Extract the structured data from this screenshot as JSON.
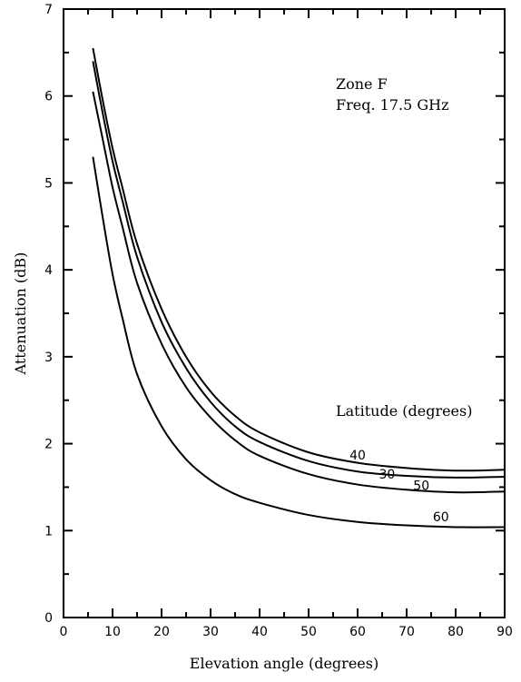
{
  "chart_data": {
    "type": "line",
    "title": "",
    "xlabel": "Elevation angle (degrees)",
    "ylabel": "Attenuation (dB)",
    "xlim": [
      0,
      90
    ],
    "ylim": [
      0,
      7
    ],
    "x_ticks": [
      0,
      10,
      20,
      30,
      40,
      50,
      60,
      70,
      80,
      90
    ],
    "y_ticks": [
      0,
      1,
      2,
      3,
      4,
      5,
      6,
      7
    ],
    "grid": false,
    "annotations": {
      "zone": "Zone F",
      "freq": "Freq. 17.5 GHz",
      "legend_title": "Latitude (degrees)"
    },
    "series": [
      {
        "name": "40",
        "label_pos": [
          60,
          1.82
        ],
        "x": [
          6,
          8,
          10,
          12,
          15,
          20,
          25,
          30,
          35,
          40,
          50,
          60,
          70,
          80,
          90
        ],
        "y": [
          6.55,
          5.95,
          5.4,
          4.95,
          4.3,
          3.55,
          3.0,
          2.6,
          2.32,
          2.13,
          1.9,
          1.78,
          1.72,
          1.69,
          1.7
        ]
      },
      {
        "name": "30",
        "label_pos": [
          66,
          1.6
        ],
        "x": [
          6,
          8,
          10,
          12,
          15,
          20,
          25,
          30,
          35,
          40,
          50,
          60,
          70,
          80,
          90
        ],
        "y": [
          6.4,
          5.8,
          5.25,
          4.8,
          4.15,
          3.4,
          2.87,
          2.48,
          2.2,
          2.02,
          1.8,
          1.68,
          1.63,
          1.61,
          1.62
        ]
      },
      {
        "name": "50",
        "label_pos": [
          73,
          1.47
        ],
        "x": [
          6,
          8,
          10,
          12,
          15,
          20,
          25,
          30,
          35,
          40,
          50,
          60,
          70,
          80,
          90
        ],
        "y": [
          6.05,
          5.5,
          4.95,
          4.5,
          3.85,
          3.15,
          2.65,
          2.3,
          2.04,
          1.86,
          1.65,
          1.53,
          1.47,
          1.44,
          1.45
        ]
      },
      {
        "name": "60",
        "label_pos": [
          77,
          1.11
        ],
        "x": [
          6,
          8,
          10,
          12,
          15,
          20,
          25,
          30,
          35,
          40,
          50,
          60,
          70,
          80,
          90
        ],
        "y": [
          5.3,
          4.6,
          3.95,
          3.45,
          2.8,
          2.2,
          1.82,
          1.58,
          1.42,
          1.32,
          1.18,
          1.1,
          1.06,
          1.04,
          1.04
        ]
      }
    ]
  }
}
